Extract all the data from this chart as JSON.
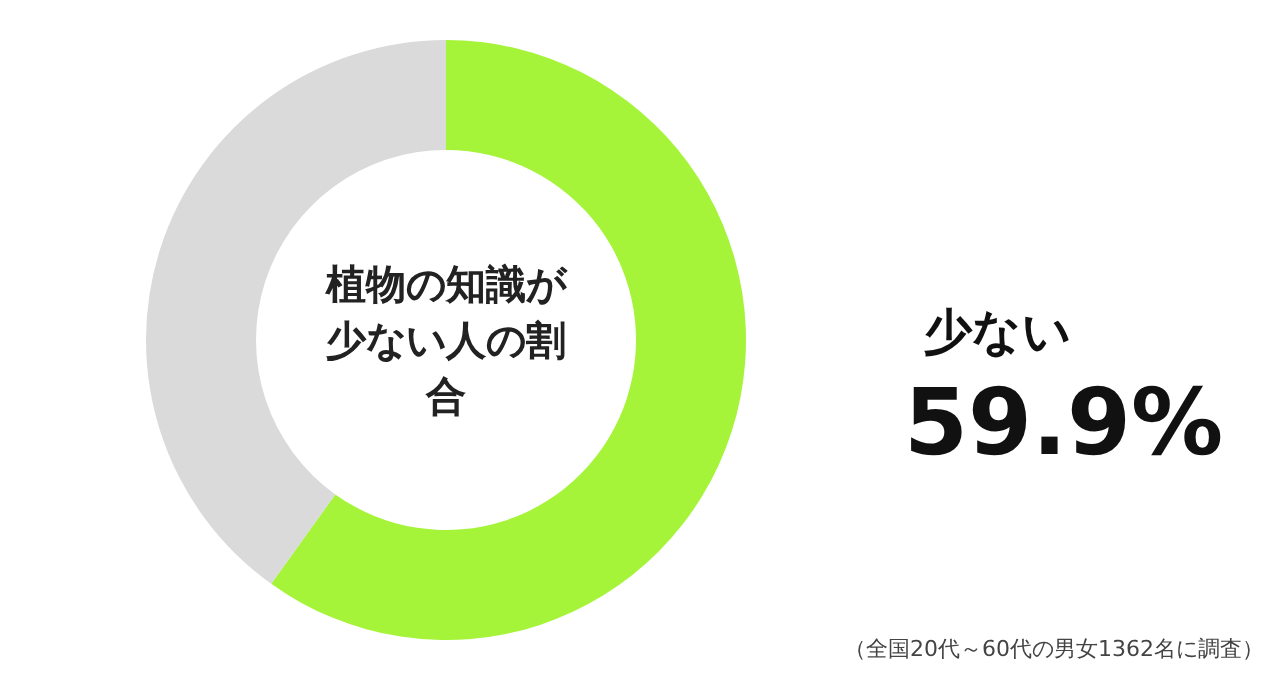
{
  "chart_data": {
    "type": "donut",
    "title": "植物の知識が少ない人の割合",
    "categories": [
      "少ない",
      null
    ],
    "values": [
      59.9,
      40.1
    ],
    "colors": [
      "#a5f43a",
      "#dadada"
    ],
    "value_labels": [
      "59.9%",
      null
    ],
    "annotations": [
      "（全国20代～60代の男女1362名に調査）"
    ]
  }
}
